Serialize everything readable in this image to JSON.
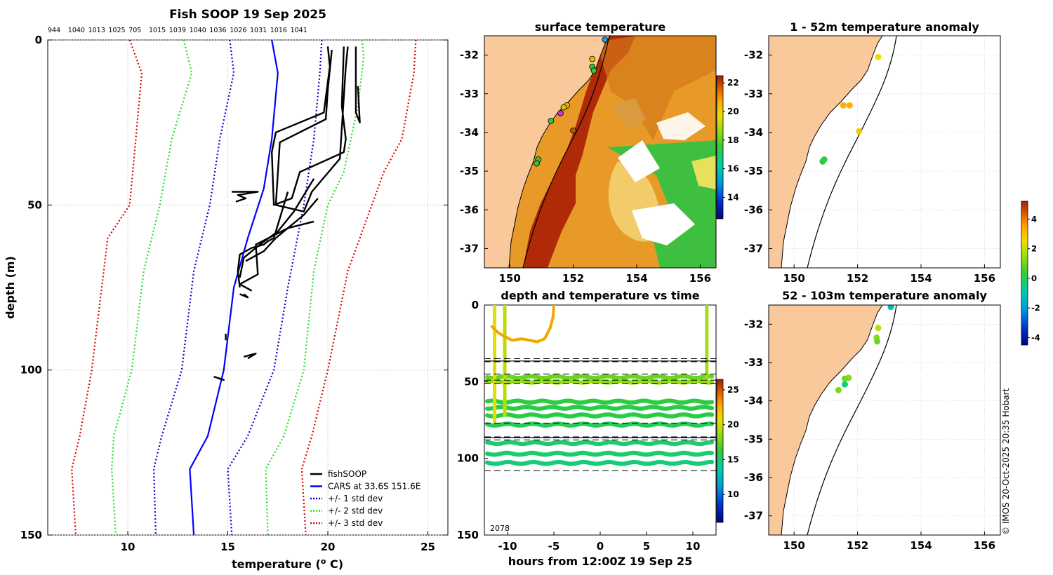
{
  "colors": {
    "fishsoop": "#000000",
    "cars": "#0000ff",
    "sd1": "#0000cc",
    "sd2": "#22dd22",
    "sd3": "#dd0000",
    "land": "#f9c99b",
    "grid": "#c8c8c8"
  },
  "chart_data": [
    {
      "type": "line",
      "name": "profile",
      "title": "Fish SOOP 19 Sep 2025",
      "top_ticks": [
        "944",
        "1040",
        "1013",
        "1025",
        "705",
        "1015",
        "1039",
        "1040",
        "1036",
        "1026",
        "1031",
        "1016",
        "1041"
      ],
      "xlabel": "temperature (",
      "xlabel_sup": "o",
      "xlabel_end": " C)",
      "ylabel": "depth (m)",
      "xlim": [
        6,
        26
      ],
      "ylim": [
        0,
        150
      ],
      "x_ticks": [
        10,
        15,
        20,
        25
      ],
      "y_ticks": [
        0,
        50,
        100,
        150
      ],
      "legend": [
        {
          "label": "fishSOOP",
          "key": "fishsoop",
          "dash": false
        },
        {
          "label": "CARS at 33.6S 151.6E",
          "key": "cars",
          "dash": false
        },
        {
          "label": "+/- 1 std dev",
          "key": "sd1",
          "dash": true
        },
        {
          "label": "+/- 2 std dev",
          "key": "sd2",
          "dash": true
        },
        {
          "label": "+/- 3 std dev",
          "key": "sd3",
          "dash": true
        }
      ],
      "series": [
        {
          "key": "cars",
          "dash": false,
          "points": [
            [
              17.2,
              0
            ],
            [
              17.5,
              10
            ],
            [
              17.2,
              30
            ],
            [
              16.8,
              45
            ],
            [
              16.0,
              60
            ],
            [
              15.3,
              75
            ],
            [
              14.8,
              100
            ],
            [
              14.0,
              120
            ],
            [
              13.1,
              130
            ],
            [
              13.3,
              150
            ]
          ]
        },
        {
          "key": "sd1",
          "dash": true,
          "points": [
            [
              15.1,
              0
            ],
            [
              15.3,
              10
            ],
            [
              14.6,
              30
            ],
            [
              14.1,
              50
            ],
            [
              13.3,
              70
            ],
            [
              12.7,
              100
            ],
            [
              11.7,
              120
            ],
            [
              11.3,
              130
            ],
            [
              11.4,
              150
            ]
          ]
        },
        {
          "key": "sd1",
          "dash": true,
          "points": [
            [
              19.7,
              0
            ],
            [
              19.6,
              10
            ],
            [
              19.3,
              30
            ],
            [
              18.8,
              50
            ],
            [
              18.0,
              75
            ],
            [
              17.3,
              100
            ],
            [
              16.0,
              120
            ],
            [
              15.0,
              130
            ],
            [
              15.2,
              150
            ]
          ]
        },
        {
          "key": "sd2",
          "dash": true,
          "points": [
            [
              12.8,
              0
            ],
            [
              13.2,
              10
            ],
            [
              12.2,
              30
            ],
            [
              11.6,
              50
            ],
            [
              10.8,
              70
            ],
            [
              10.2,
              100
            ],
            [
              9.3,
              120
            ],
            [
              9.2,
              130
            ],
            [
              9.4,
              150
            ]
          ]
        },
        {
          "key": "sd2",
          "dash": true,
          "points": [
            [
              21.7,
              0
            ],
            [
              21.8,
              5
            ],
            [
              21.5,
              20
            ],
            [
              20.8,
              40
            ],
            [
              20.0,
              50
            ],
            [
              19.3,
              70
            ],
            [
              18.8,
              100
            ],
            [
              17.8,
              120
            ],
            [
              16.9,
              130
            ],
            [
              17.0,
              150
            ]
          ]
        },
        {
          "key": "sd3",
          "dash": true,
          "points": [
            [
              10.1,
              0
            ],
            [
              10.7,
              10
            ],
            [
              10.4,
              30
            ],
            [
              10.1,
              50
            ],
            [
              9.0,
              60
            ],
            [
              8.6,
              80
            ],
            [
              8.2,
              100
            ],
            [
              7.6,
              120
            ],
            [
              7.2,
              130
            ],
            [
              7.4,
              150
            ]
          ]
        },
        {
          "key": "sd3",
          "dash": true,
          "points": [
            [
              24.4,
              0
            ],
            [
              24.3,
              10
            ],
            [
              23.7,
              30
            ],
            [
              22.8,
              40
            ],
            [
              22.2,
              50
            ],
            [
              21.0,
              70
            ],
            [
              20.0,
              100
            ],
            [
              19.2,
              120
            ],
            [
              18.7,
              130
            ],
            [
              18.9,
              150
            ]
          ]
        },
        {
          "key": "fishsoop",
          "dash": false,
          "points": [
            [
              20.0,
              2
            ],
            [
              20.1,
              8
            ],
            [
              19.8,
              22
            ],
            [
              17.4,
              28
            ],
            [
              17.2,
              34
            ],
            [
              17.3,
              50
            ],
            [
              18.2,
              48
            ],
            [
              18.6,
              40
            ],
            [
              20.8,
              34
            ],
            [
              20.9,
              30
            ],
            [
              20.7,
              20
            ],
            [
              20.8,
              2
            ]
          ]
        },
        {
          "key": "fishsoop",
          "dash": false,
          "points": [
            [
              20.2,
              3
            ],
            [
              20.0,
              15
            ],
            [
              19.9,
              24
            ],
            [
              17.6,
              31
            ],
            [
              17.4,
              50
            ],
            [
              18.8,
              52
            ],
            [
              19.2,
              46
            ],
            [
              20.6,
              36
            ],
            [
              20.9,
              8
            ],
            [
              21.0,
              2
            ]
          ]
        },
        {
          "key": "fishsoop",
          "dash": false,
          "points": [
            [
              21.4,
              2
            ],
            [
              21.4,
              22
            ],
            [
              21.6,
              25
            ],
            [
              21.5,
              14
            ]
          ]
        },
        {
          "key": "fishsoop",
          "dash": false,
          "points": [
            [
              18.0,
              46
            ],
            [
              17.5,
              56
            ],
            [
              17.3,
              60
            ],
            [
              17.0,
              61
            ],
            [
              16.8,
              62
            ],
            [
              16.2,
              63
            ],
            [
              15.6,
              65
            ],
            [
              15.5,
              70
            ],
            [
              15.6,
              75
            ]
          ]
        },
        {
          "key": "fishsoop",
          "dash": false,
          "points": [
            [
              19.3,
              42
            ],
            [
              18.3,
              52
            ],
            [
              17.5,
              58
            ],
            [
              16.6,
              62
            ],
            [
              15.8,
              66
            ],
            [
              15.6,
              72
            ]
          ]
        },
        {
          "key": "fishsoop",
          "dash": false,
          "points": [
            [
              19.5,
              48
            ],
            [
              18.8,
              53
            ],
            [
              17.4,
              60
            ],
            [
              16.8,
              64
            ],
            [
              15.9,
              67
            ]
          ]
        },
        {
          "key": "fishsoop",
          "dash": false,
          "points": [
            [
              19.3,
              55
            ],
            [
              18.0,
              57
            ],
            [
              16.4,
              62
            ],
            [
              16.5,
              71
            ],
            [
              15.6,
              74
            ],
            [
              16.2,
              76
            ]
          ]
        },
        {
          "key": "fishsoop",
          "dash": false,
          "points": [
            [
              15.2,
              46
            ],
            [
              16.5,
              46
            ],
            [
              15.5,
              47
            ],
            [
              15.9,
              48
            ],
            [
              15.4,
              49
            ]
          ]
        },
        {
          "key": "fishsoop",
          "dash": false,
          "points": [
            [
              15.6,
              77
            ],
            [
              16.0,
              78
            ],
            [
              15.8,
              77
            ]
          ]
        },
        {
          "key": "fishsoop",
          "dash": false,
          "points": [
            [
              14.9,
              89
            ],
            [
              14.9,
              91
            ]
          ]
        },
        {
          "key": "fishsoop",
          "dash": false,
          "points": [
            [
              15.8,
              96
            ],
            [
              16.4,
              95
            ],
            [
              16.0,
              96.5
            ]
          ]
        },
        {
          "key": "fishsoop",
          "dash": false,
          "points": [
            [
              14.3,
              102
            ],
            [
              14.8,
              103
            ],
            [
              14.5,
              102.5
            ]
          ]
        }
      ]
    },
    {
      "type": "heatmap",
      "name": "sst-map",
      "title": "surface temperature",
      "x_ticks": [
        150,
        152,
        154,
        156
      ],
      "y_ticks": [
        -32,
        -33,
        -34,
        -35,
        -36,
        -37
      ],
      "xlim": [
        149.2,
        156.5
      ],
      "ylim": [
        -37.5,
        -31.5
      ],
      "colorbar_ticks": [
        14,
        16,
        18,
        20,
        22
      ],
      "colorbar_range": [
        12.5,
        22.5
      ],
      "stations": [
        {
          "lon": 153.0,
          "lat": -31.6,
          "fill": "#1e9be0"
        },
        {
          "lon": 152.6,
          "lat": -32.1,
          "fill": "#d8c400"
        },
        {
          "lon": 152.6,
          "lat": -32.3,
          "fill": "#3dbf3d"
        },
        {
          "lon": 152.65,
          "lat": -32.4,
          "fill": "#3dbf3d"
        },
        {
          "lon": 151.8,
          "lat": -33.3,
          "fill": "#d8c400"
        },
        {
          "lon": 151.7,
          "lat": -33.35,
          "fill": "#d8c400"
        },
        {
          "lon": 151.6,
          "lat": -33.5,
          "fill": "#cc33cc"
        },
        {
          "lon": 151.3,
          "lat": -33.7,
          "fill": "#3dbf3d"
        },
        {
          "lon": 152.0,
          "lat": -33.95,
          "fill": "#b05a10"
        },
        {
          "lon": 150.9,
          "lat": -34.7,
          "fill": "#3dbf3d"
        },
        {
          "lon": 150.85,
          "lat": -34.8,
          "fill": "#3dbf3d"
        }
      ]
    },
    {
      "type": "scatter",
      "name": "depth-time",
      "title": "depth and temperature vs time",
      "xlabel": "hours from 12:00Z 19 Sep 25",
      "x_ticks": [
        -10,
        -5,
        0,
        5,
        10
      ],
      "y_ticks": [
        0,
        50,
        100,
        150
      ],
      "xlim": [
        -12.5,
        12.5
      ],
      "ylim": [
        0,
        150
      ],
      "note": "2078",
      "colorbar_ticks": [
        10,
        15,
        20,
        25
      ],
      "colorbar_range": [
        6,
        26.5
      ],
      "dashed_depths": [
        35,
        37,
        45,
        49,
        51,
        77,
        86,
        88,
        108
      ],
      "solid_depths": [
        36.5,
        86.5
      ],
      "bands": [
        {
          "depth": 47,
          "temp": 17.5
        },
        {
          "depth": 50,
          "temp": 18.5
        },
        {
          "depth": 63,
          "temp": 16.0
        },
        {
          "depth": 67,
          "temp": 15.8
        },
        {
          "depth": 72,
          "temp": 15.8
        },
        {
          "depth": 78,
          "temp": 15.5
        },
        {
          "depth": 90,
          "temp": 15.0
        },
        {
          "depth": 97,
          "temp": 15.0
        },
        {
          "depth": 103,
          "temp": 14.8
        }
      ],
      "casts": [
        {
          "x": -11.4,
          "temp": 20.5,
          "bottom": 76
        },
        {
          "x": -10.3,
          "temp": 19.5,
          "bottom": 72
        },
        {
          "x": 11.5,
          "temp": 19.0,
          "bottom": 50
        }
      ],
      "surface_track": [
        [
          -11.7,
          14
        ],
        [
          -11.0,
          18
        ],
        [
          -10.5,
          20
        ],
        [
          -9.5,
          23
        ],
        [
          -8.5,
          22
        ],
        [
          -7.6,
          23
        ],
        [
          -6.8,
          24
        ],
        [
          -6.0,
          22
        ],
        [
          -5.4,
          15
        ],
        [
          -5.1,
          8
        ],
        [
          -5.0,
          0
        ]
      ]
    },
    {
      "type": "scatter",
      "name": "anomaly-upper",
      "title": "1 - 52m temperature anomaly",
      "x_ticks": [
        150,
        152,
        154,
        156
      ],
      "y_ticks": [
        -32,
        -33,
        -34,
        -35,
        -36,
        -37
      ],
      "xlim": [
        149.2,
        156.5
      ],
      "ylim": [
        -37.5,
        -31.5
      ],
      "points": [
        {
          "lon": 152.65,
          "lat": -32.05,
          "anom": 2.6
        },
        {
          "lon": 151.55,
          "lat": -33.3,
          "anom": 3.4
        },
        {
          "lon": 151.75,
          "lat": -33.3,
          "anom": 3.3
        },
        {
          "lon": 152.05,
          "lat": -33.97,
          "anom": 2.9
        },
        {
          "lon": 150.95,
          "lat": -34.7,
          "anom": 0.2
        },
        {
          "lon": 150.9,
          "lat": -34.75,
          "anom": 0.2
        }
      ]
    },
    {
      "type": "scatter",
      "name": "anomaly-lower",
      "title": "52 - 103m temperature anomaly",
      "x_ticks": [
        150,
        152,
        154,
        156
      ],
      "y_ticks": [
        -32,
        -33,
        -34,
        -35,
        -36,
        -37
      ],
      "xlim": [
        149.2,
        156.5
      ],
      "ylim": [
        -37.5,
        -31.5
      ],
      "points": [
        {
          "lon": 153.05,
          "lat": -31.55,
          "anom": -1.2
        },
        {
          "lon": 152.65,
          "lat": -32.1,
          "anom": 1.9
        },
        {
          "lon": 152.6,
          "lat": -32.35,
          "anom": 1.3
        },
        {
          "lon": 152.62,
          "lat": -32.45,
          "anom": 1.0
        },
        {
          "lon": 151.72,
          "lat": -33.4,
          "anom": 1.3
        },
        {
          "lon": 151.6,
          "lat": -33.42,
          "anom": 1.1
        },
        {
          "lon": 151.6,
          "lat": -33.57,
          "anom": -0.4
        },
        {
          "lon": 151.4,
          "lat": -33.72,
          "anom": 1.2
        }
      ]
    },
    {
      "type": "colorbar",
      "name": "anomaly-colorbar",
      "ticks": [
        4,
        2,
        0,
        -2,
        -4
      ],
      "range": [
        -4.5,
        5.2
      ]
    }
  ],
  "credit": "© IMOS 20-Oct-2025 20:35 Hobart"
}
